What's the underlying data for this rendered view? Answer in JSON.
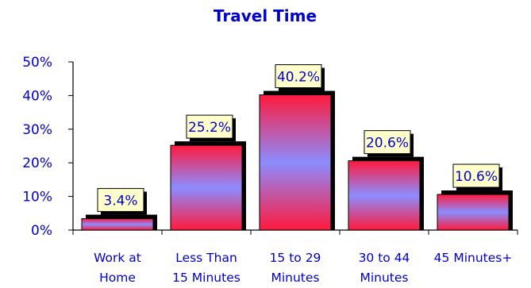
{
  "colors": {
    "text": "#0000cc",
    "bar_top": "#ff1a3c",
    "bar_mid": "#8c8cff",
    "bar_bottom": "#ff1a3c",
    "label_box": "#ffffcc",
    "shadow": "#000000"
  },
  "chart_data": {
    "type": "bar",
    "title": "Travel Time",
    "xlabel": "",
    "ylabel": "",
    "categories": [
      [
        "Work at",
        "Home"
      ],
      [
        "Less Than",
        "15 Minutes"
      ],
      [
        "15 to 29",
        "Minutes"
      ],
      [
        "30 to 44",
        "Minutes"
      ],
      [
        "45 Minutes+"
      ]
    ],
    "values": [
      3.4,
      25.2,
      40.2,
      20.6,
      10.6
    ],
    "data_labels": [
      "3.4%",
      "25.2%",
      "40.2%",
      "20.6%",
      "10.6%"
    ],
    "ylim": [
      0,
      50
    ],
    "yticks": [
      0,
      10,
      20,
      30,
      40,
      50
    ],
    "ytick_labels": [
      "0%",
      "10%",
      "20%",
      "30%",
      "40%",
      "50%"
    ],
    "grid": false,
    "legend": "none"
  }
}
